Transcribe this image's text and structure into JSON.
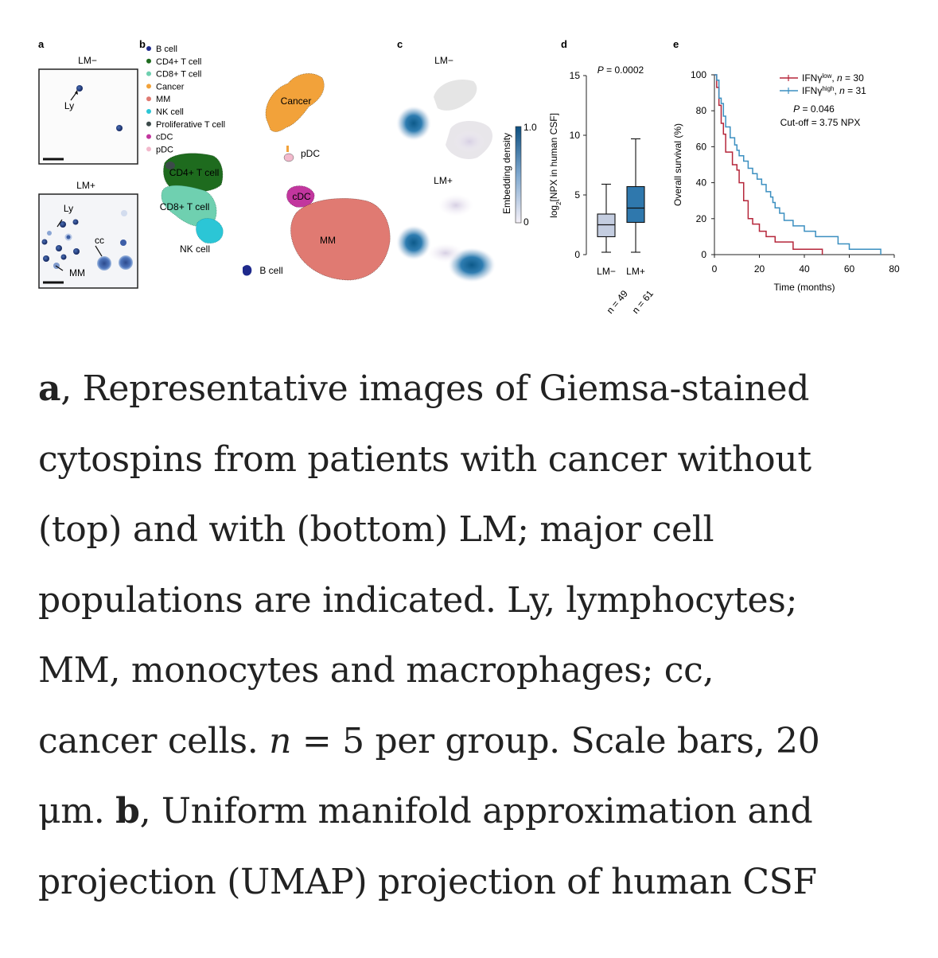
{
  "figure": {
    "panel_a": {
      "letter": "a",
      "top_title": "LM−",
      "bottom_title": "LM+",
      "labels": {
        "ly_top": "Ly",
        "ly_bottom": "Ly",
        "cc": "cc",
        "mm": "MM"
      }
    },
    "panel_b": {
      "letter": "b",
      "legend": [
        {
          "label": "B cell",
          "color": "#1f2a8c"
        },
        {
          "label": "CD4+ T cell",
          "color": "#1e6b1e"
        },
        {
          "label": "CD8+ T cell",
          "color": "#6fd0b0"
        },
        {
          "label": "Cancer",
          "color": "#f2a23a"
        },
        {
          "label": "MM",
          "color": "#e07a72"
        },
        {
          "label": "NK cell",
          "color": "#2bc6d6"
        },
        {
          "label": "Proliferative T cell",
          "color": "#3c4a4a"
        },
        {
          "label": "cDC",
          "color": "#c2369e"
        },
        {
          "label": "pDC",
          "color": "#f2b9cc"
        }
      ],
      "cluster_labels": {
        "cancer": "Cancer",
        "pdc": "pDC",
        "cd4": "CD4+ T cell",
        "cd8": "CD8+ T cell",
        "nk": "NK cell",
        "cdc": "cDC",
        "mm": "MM",
        "bcell": "B cell"
      }
    },
    "panel_c": {
      "letter": "c",
      "top_title": "LM−",
      "bottom_title": "LM+",
      "colorbar_label": "Embedding density",
      "colorbar_max": "1.0",
      "colorbar_min": "0",
      "colors": {
        "low": "#f2eef5",
        "high": "#0d5a8a"
      }
    },
    "panel_d": {
      "letter": "d",
      "p_value": "P = 0.0002",
      "ylabel": "log2[NPX in human CSF]",
      "yticks": [
        "0",
        "5",
        "10",
        "15"
      ],
      "groups": [
        {
          "label": "LM−",
          "n_label": "n = 49"
        },
        {
          "label": "LM+",
          "n_label": "n = 61"
        }
      ]
    },
    "panel_e": {
      "letter": "e",
      "legend": [
        {
          "label": "IFNγ low, n = 30",
          "color": "#b5263a"
        },
        {
          "label": "IFNγ high, n = 31",
          "color": "#3b8fc0"
        }
      ],
      "p_value": "P = 0.046",
      "cutoff": "Cut-off = 3.75 NPX",
      "xlabel": "Time (months)",
      "ylabel": "Overall survival (%)",
      "xticks": [
        "0",
        "20",
        "40",
        "60",
        "80"
      ],
      "yticks": [
        "0",
        "20",
        "40",
        "60",
        "80",
        "100"
      ]
    }
  },
  "chart_data": [
    {
      "type": "box",
      "ylabel": "log2[NPX in human CSF]",
      "ylim": [
        0,
        15
      ],
      "categories": [
        "LM−",
        "LM+"
      ],
      "boxes": [
        {
          "name": "LM−",
          "min": 0.2,
          "q1": 1.5,
          "median": 2.5,
          "q3": 3.4,
          "max": 5.9,
          "color": "#c4cde0"
        },
        {
          "name": "LM+",
          "min": 0.2,
          "q1": 2.7,
          "median": 3.9,
          "q3": 5.7,
          "max": 9.7,
          "color": "#2f78ad"
        }
      ]
    },
    {
      "type": "line",
      "xlabel": "Time (months)",
      "ylabel": "Overall survival (%)",
      "xlim": [
        0,
        80
      ],
      "ylim": [
        0,
        100
      ],
      "series": [
        {
          "name": "IFNγ low, n = 30",
          "color": "#b5263a",
          "x": [
            0,
            1,
            2,
            3,
            4,
            5,
            8,
            10,
            11,
            13,
            15,
            17,
            20,
            23,
            27,
            35,
            40,
            48
          ],
          "y": [
            100,
            93,
            83,
            73,
            67,
            57,
            50,
            47,
            40,
            30,
            20,
            17,
            13,
            10,
            7,
            3,
            3,
            0
          ]
        },
        {
          "name": "IFNγ high, n = 31",
          "color": "#3b8fc0",
          "x": [
            0,
            1,
            2,
            3,
            4,
            5,
            7,
            9,
            10,
            11,
            13,
            15,
            17,
            19,
            21,
            23,
            25,
            26,
            27,
            29,
            31,
            35,
            40,
            45,
            55,
            60,
            68,
            74
          ],
          "y": [
            100,
            97,
            87,
            84,
            77,
            71,
            65,
            61,
            58,
            55,
            52,
            48,
            45,
            42,
            39,
            35,
            32,
            29,
            26,
            23,
            19,
            16,
            13,
            10,
            6,
            3,
            3,
            0
          ]
        }
      ]
    }
  ],
  "caption_lines": [
    [
      {
        "t": "a",
        "b": 1
      },
      {
        "t": ", Representative images of Giemsa-stained"
      }
    ],
    [
      {
        "t": "cytospins from patients with cancer without"
      }
    ],
    [
      {
        "t": "(top) and with (bottom) LM; major cell"
      }
    ],
    [
      {
        "t": "populations are indicated. Ly, lymphocytes;"
      }
    ],
    [
      {
        "t": "MM, monocytes and macrophages; cc,"
      }
    ],
    [
      {
        "t": "cancer cells. "
      },
      {
        "t": "n",
        "i": 1
      },
      {
        "t": " = 5 per group. Scale bars, 20"
      }
    ],
    [
      {
        "t": "μm. "
      },
      {
        "t": "b",
        "b": 1
      },
      {
        "t": ", Uniform manifold approximation and"
      }
    ],
    [
      {
        "t": "projection (UMAP) projection of human CSF"
      }
    ]
  ]
}
